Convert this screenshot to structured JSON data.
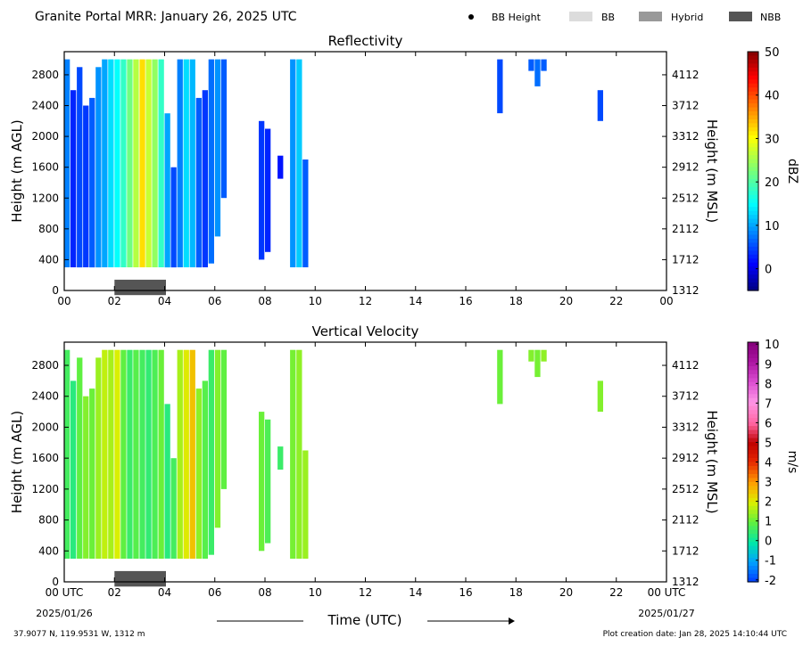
{
  "header": {
    "title": "Granite Portal MRR:  January 26, 2025 UTC",
    "legend": [
      {
        "label": "BB Height",
        "marker": "dot",
        "color": "#000000"
      },
      {
        "label": "BB",
        "marker": "rect",
        "color": "#dcdcdc"
      },
      {
        "label": "Hybrid",
        "marker": "rect",
        "color": "#999999"
      },
      {
        "label": "NBB",
        "marker": "rect",
        "color": "#555555"
      }
    ]
  },
  "footer": {
    "location": "37.9077 N, 119.9531 W, 1312 m",
    "created": "Plot creation date: Jan 28, 2025 14:10:44 UTC",
    "xlabel": "Time (UTC)",
    "start_date": "2025/01/26",
    "end_date": "2025/01/27"
  },
  "chart_data": [
    {
      "type": "heatmap",
      "title": "Reflectivity",
      "ylabel": "Height (m AGL)",
      "ylabel_right": "Height (m MSL)",
      "colorbar_label": "dBZ",
      "colorbar_ticks": [
        "0",
        "10",
        "20",
        "30",
        "40",
        "50"
      ],
      "colorbar_range": [
        -5,
        50
      ],
      "colormap": "jet",
      "x_range": [
        0,
        24
      ],
      "y_range": [
        0,
        3100
      ],
      "x_ticks": [
        "00",
        "02",
        "04",
        "06",
        "08",
        "10",
        "12",
        "14",
        "16",
        "18",
        "20",
        "22",
        "00"
      ],
      "y_ticks": [
        "0",
        "400",
        "800",
        "1200",
        "1600",
        "2000",
        "2400",
        "2800"
      ],
      "y_ticks_right": [
        "1312",
        "1712",
        "2112",
        "2512",
        "2912",
        "3312",
        "3712",
        "4112"
      ],
      "melting_layer": [
        {
          "x_start": 2.0,
          "x_end": 4.05,
          "type": "NBB"
        }
      ],
      "segments": [
        {
          "x": 0.0,
          "y0": 300,
          "y1": 3000,
          "v": 8
        },
        {
          "x": 0.25,
          "y0": 300,
          "y1": 2600,
          "v": 3
        },
        {
          "x": 0.5,
          "y0": 300,
          "y1": 2900,
          "v": 5
        },
        {
          "x": 0.75,
          "y0": 300,
          "y1": 2400,
          "v": 4
        },
        {
          "x": 1.0,
          "y0": 300,
          "y1": 2500,
          "v": 6
        },
        {
          "x": 1.25,
          "y0": 300,
          "y1": 2900,
          "v": 9
        },
        {
          "x": 1.5,
          "y0": 300,
          "y1": 3000,
          "v": 10
        },
        {
          "x": 1.75,
          "y0": 300,
          "y1": 3000,
          "v": 13
        },
        {
          "x": 2.0,
          "y0": 300,
          "y1": 3000,
          "v": 15
        },
        {
          "x": 2.25,
          "y0": 300,
          "y1": 3000,
          "v": 18
        },
        {
          "x": 2.5,
          "y0": 300,
          "y1": 3000,
          "v": 22
        },
        {
          "x": 2.75,
          "y0": 300,
          "y1": 3000,
          "v": 26
        },
        {
          "x": 3.0,
          "y0": 300,
          "y1": 3000,
          "v": 32
        },
        {
          "x": 3.25,
          "y0": 300,
          "y1": 3000,
          "v": 27
        },
        {
          "x": 3.5,
          "y0": 300,
          "y1": 3000,
          "v": 24
        },
        {
          "x": 3.75,
          "y0": 300,
          "y1": 3000,
          "v": 18
        },
        {
          "x": 4.0,
          "y0": 300,
          "y1": 2300,
          "v": 10
        },
        {
          "x": 4.25,
          "y0": 300,
          "y1": 1600,
          "v": 5
        },
        {
          "x": 4.5,
          "y0": 300,
          "y1": 3000,
          "v": 8
        },
        {
          "x": 4.75,
          "y0": 300,
          "y1": 3000,
          "v": 13
        },
        {
          "x": 5.0,
          "y0": 300,
          "y1": 3000,
          "v": 11
        },
        {
          "x": 5.25,
          "y0": 300,
          "y1": 2500,
          "v": 6
        },
        {
          "x": 5.5,
          "y0": 300,
          "y1": 2600,
          "v": 4
        },
        {
          "x": 5.75,
          "y0": 350,
          "y1": 3000,
          "v": 7
        },
        {
          "x": 6.0,
          "y0": 700,
          "y1": 3000,
          "v": 9
        },
        {
          "x": 6.25,
          "y0": 1200,
          "y1": 3000,
          "v": 6
        },
        {
          "x": 7.75,
          "y0": 400,
          "y1": 2200,
          "v": 4
        },
        {
          "x": 8.0,
          "y0": 500,
          "y1": 2100,
          "v": 3
        },
        {
          "x": 8.5,
          "y0": 1450,
          "y1": 1750,
          "v": 2
        },
        {
          "x": 9.0,
          "y0": 300,
          "y1": 3000,
          "v": 9
        },
        {
          "x": 9.25,
          "y0": 300,
          "y1": 3000,
          "v": 12
        },
        {
          "x": 9.5,
          "y0": 300,
          "y1": 1700,
          "v": 6
        },
        {
          "x": 17.25,
          "y0": 2300,
          "y1": 3000,
          "v": 5
        },
        {
          "x": 18.5,
          "y0": 2850,
          "y1": 3000,
          "v": 6
        },
        {
          "x": 18.75,
          "y0": 2650,
          "y1": 3000,
          "v": 7
        },
        {
          "x": 19.0,
          "y0": 2850,
          "y1": 3000,
          "v": 6
        },
        {
          "x": 21.25,
          "y0": 2200,
          "y1": 2600,
          "v": 5
        }
      ]
    },
    {
      "type": "heatmap",
      "title": "Vertical Velocity",
      "ylabel": "Height (m AGL)",
      "ylabel_right": "Height (m MSL)",
      "colorbar_label": "m/s",
      "colorbar_ticks": [
        "-2",
        "-1",
        "0",
        "1",
        "2",
        "3",
        "4",
        "5",
        "6",
        "7",
        "8",
        "9",
        "10"
      ],
      "colorbar_range": [
        -2.1,
        10.1
      ],
      "colormap": "velocity",
      "x_range": [
        0,
        24
      ],
      "y_range": [
        0,
        3100
      ],
      "x_ticks": [
        "00 UTC",
        "02",
        "04",
        "06",
        "08",
        "10",
        "12",
        "14",
        "16",
        "18",
        "20",
        "22",
        "00 UTC"
      ],
      "y_ticks": [
        "0",
        "400",
        "800",
        "1200",
        "1600",
        "2000",
        "2400",
        "2800"
      ],
      "y_ticks_right": [
        "1312",
        "1712",
        "2112",
        "2512",
        "2912",
        "3312",
        "3712",
        "4112"
      ],
      "melting_layer": [
        {
          "x_start": 2.0,
          "x_end": 4.05,
          "type": "NBB"
        }
      ],
      "segments": [
        {
          "x": 0.0,
          "y0": 300,
          "y1": 3000,
          "v": 0.6
        },
        {
          "x": 0.25,
          "y0": 300,
          "y1": 2600,
          "v": 0.3
        },
        {
          "x": 0.5,
          "y0": 300,
          "y1": 2900,
          "v": 0.9
        },
        {
          "x": 0.75,
          "y0": 300,
          "y1": 2400,
          "v": 1.2
        },
        {
          "x": 1.0,
          "y0": 300,
          "y1": 2500,
          "v": 1.0
        },
        {
          "x": 1.25,
          "y0": 300,
          "y1": 2900,
          "v": 1.4
        },
        {
          "x": 1.5,
          "y0": 300,
          "y1": 3000,
          "v": 1.7
        },
        {
          "x": 1.75,
          "y0": 300,
          "y1": 3000,
          "v": 1.5
        },
        {
          "x": 2.0,
          "y0": 300,
          "y1": 3000,
          "v": 1.9
        },
        {
          "x": 2.25,
          "y0": 300,
          "y1": 3000,
          "v": 0.9
        },
        {
          "x": 2.5,
          "y0": 300,
          "y1": 3000,
          "v": 0.5
        },
        {
          "x": 2.75,
          "y0": 300,
          "y1": 3000,
          "v": 0.8
        },
        {
          "x": 3.0,
          "y0": 300,
          "y1": 3000,
          "v": 0.6
        },
        {
          "x": 3.25,
          "y0": 300,
          "y1": 3000,
          "v": 0.4
        },
        {
          "x": 3.5,
          "y0": 300,
          "y1": 3000,
          "v": 0.7
        },
        {
          "x": 3.75,
          "y0": 300,
          "y1": 3000,
          "v": 1.0
        },
        {
          "x": 4.0,
          "y0": 300,
          "y1": 2300,
          "v": 0.3
        },
        {
          "x": 4.25,
          "y0": 300,
          "y1": 1600,
          "v": 0.6
        },
        {
          "x": 4.5,
          "y0": 300,
          "y1": 3000,
          "v": 1.5
        },
        {
          "x": 4.75,
          "y0": 300,
          "y1": 3000,
          "v": 2.0
        },
        {
          "x": 5.0,
          "y0": 300,
          "y1": 3000,
          "v": 2.5
        },
        {
          "x": 5.25,
          "y0": 300,
          "y1": 2500,
          "v": 1.3
        },
        {
          "x": 5.5,
          "y0": 300,
          "y1": 2600,
          "v": 0.8
        },
        {
          "x": 5.75,
          "y0": 350,
          "y1": 3000,
          "v": 0.5
        },
        {
          "x": 6.0,
          "y0": 700,
          "y1": 3000,
          "v": 1.2
        },
        {
          "x": 6.25,
          "y0": 1200,
          "y1": 3000,
          "v": 0.9
        },
        {
          "x": 7.75,
          "y0": 400,
          "y1": 2200,
          "v": 1.0
        },
        {
          "x": 8.0,
          "y0": 500,
          "y1": 2100,
          "v": 0.7
        },
        {
          "x": 8.5,
          "y0": 1450,
          "y1": 1750,
          "v": 0.5
        },
        {
          "x": 9.0,
          "y0": 300,
          "y1": 3000,
          "v": 1.1
        },
        {
          "x": 9.25,
          "y0": 300,
          "y1": 3000,
          "v": 1.3
        },
        {
          "x": 9.5,
          "y0": 300,
          "y1": 1700,
          "v": 1.4
        },
        {
          "x": 17.25,
          "y0": 2300,
          "y1": 3000,
          "v": 1.0
        },
        {
          "x": 18.5,
          "y0": 2850,
          "y1": 3000,
          "v": 1.2
        },
        {
          "x": 18.75,
          "y0": 2650,
          "y1": 3000,
          "v": 1.1
        },
        {
          "x": 19.0,
          "y0": 2850,
          "y1": 3000,
          "v": 1.3
        },
        {
          "x": 21.25,
          "y0": 2200,
          "y1": 2600,
          "v": 1.2
        }
      ]
    }
  ]
}
